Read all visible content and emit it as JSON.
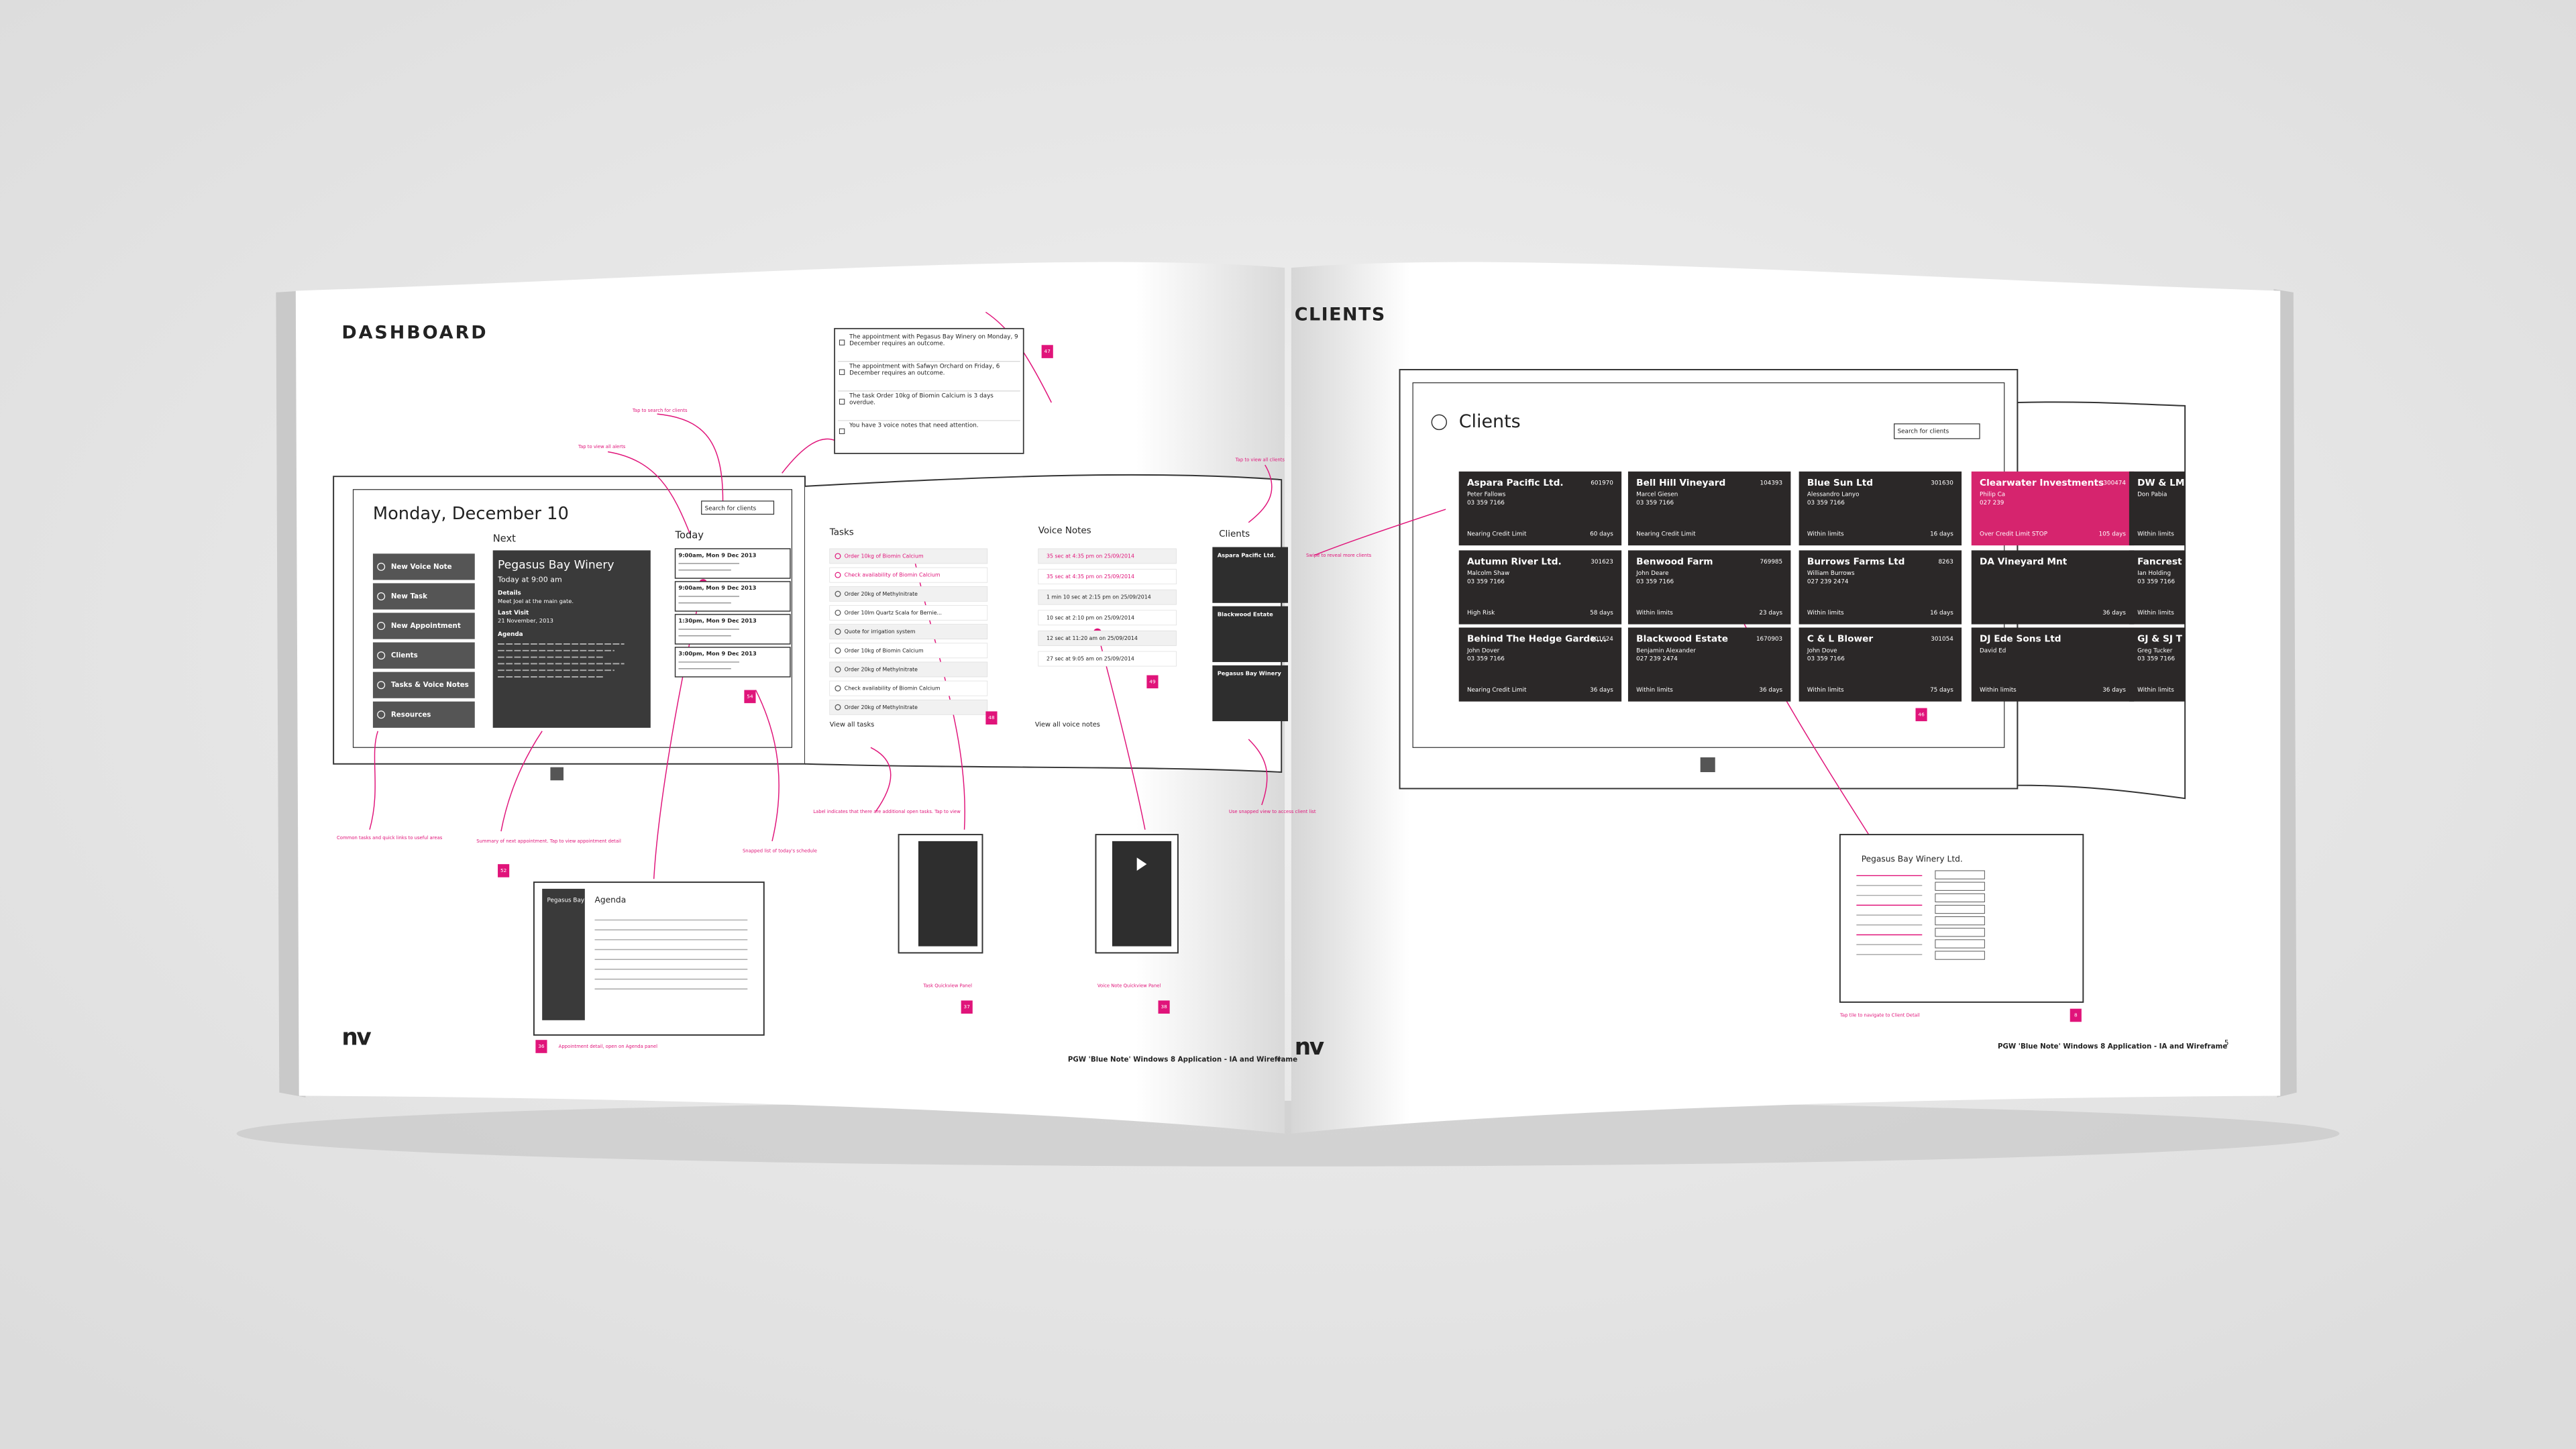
{
  "dashboard_page": {
    "title": "DASHBOARD",
    "logo": "nv",
    "footer": "PGW 'Blue Note' Windows 8 Application - IA and Wireframe",
    "page_number": "4",
    "screen": {
      "date": "Monday, December 10",
      "search": "Search for clients",
      "next_label": "Next",
      "today_label": "Today",
      "menu": [
        "New Voice Note",
        "New Task",
        "New Appointment",
        "Clients",
        "Tasks & Voice Notes",
        "Resources"
      ],
      "next_card": {
        "name": "Pegasus Bay Winery",
        "time": "Today at 9:00 am",
        "details_label": "Details",
        "details": "Meet Joel at the main gate.",
        "last_visit_label": "Last Visit",
        "last_visit": "21 November, 2013",
        "agenda_label": "Agenda"
      },
      "today_items": [
        "9:00am, Mon 9 Dec 2013",
        "9:00am, Mon 9 Dec 2013",
        "1:30pm, Mon 9 Dec 2013",
        "3:00pm, Mon 9 Dec 2013"
      ]
    },
    "notifications": [
      "The appointment with Pegasus Bay Winery on Monday, 9 December requires an outcome.",
      "The appointment with Safwyn Orchard on Friday, 6 December requires an outcome.",
      "The task Order 10kg of Biomin Calcium is 3 days overdue.",
      "You have 3 voice notes that need attention."
    ],
    "tasks": {
      "title": "Tasks",
      "items": [
        "Order 10kg of Biomin Calcium",
        "Check availability of Biomin Calcium",
        "Order 20kg of Methylnitrate",
        "Order 10lm Quartz Scala for Bernie...",
        "Quote for irrigation system",
        "Order 10kg of Biomin Calcium",
        "Order 20kg of Methylnitrate",
        "Check availability of Biomin Calcium",
        "Order 20kg of Methylnitrate"
      ],
      "link": "View all tasks"
    },
    "voice_notes": {
      "title": "Voice Notes",
      "items": [
        "35 sec at 4:35 pm on 25/09/2014",
        "35 sec at 4:35 pm on 25/09/2014",
        "1 min 10 sec at 2:15 pm on 25/09/2014",
        "10 sec at 2:10 pm on 25/09/2014",
        "12 sec at 11:20 am on 25/09/2014",
        "27 sec at 9:05 am on 25/09/2014"
      ],
      "link": "View all voice notes"
    },
    "clients": {
      "title": "Clients",
      "items": [
        "Aspara Pacific Ltd.",
        "Blackwood Estate",
        "Pegasus Bay Winery"
      ]
    },
    "agenda_panel": {
      "client": "Pegasus Bay Winery",
      "title": "Agenda"
    },
    "annotations": [
      "Tap to search for clients",
      "Tap to view all alerts",
      "Common tasks and quick links to useful areas",
      "Summary of next appointment. Tap to view appointment detail",
      "Snapped list of today's schedule",
      "Label indicates that there are additional open tasks. Tap to view",
      "Tap to view all clients",
      "Use snapped view to access client list",
      "Task Quickview Panel",
      "Voice Note Quickview Panel",
      "Appointment detail, open on Agenda panel"
    ],
    "badges": [
      "47",
      "54",
      "48",
      "49",
      "52",
      "36",
      "37",
      "38"
    ]
  },
  "clients_page": {
    "title": "CLIENTS",
    "logo": "nv",
    "footer": "PGW 'Blue Note' Windows 8 Application - IA and Wireframe",
    "page_number": "5",
    "screen": {
      "heading": "Clients",
      "search": "Search for clients",
      "tiles": [
        [
          {
            "name": "Aspara Pacific Ltd.",
            "id": "601970",
            "contact": "Peter Fallows",
            "phone": "03 359 7166",
            "status": "Nearing Credit Limit",
            "days": "60 days"
          },
          {
            "name": "Bell Hill Vineyard",
            "id": "104393",
            "contact": "Marcel Giesen",
            "phone": "03 359 7166",
            "status": "Nearing Credit Limit"
          },
          {
            "name": "Blue Sun Ltd",
            "id": "301630",
            "contact": "Alessandro Lanyo",
            "phone": "03 359 7166",
            "status": "Within limits",
            "days": "16 days"
          },
          {
            "name": "Clearwater Investments",
            "id": "300474",
            "contact": "Philip Ca",
            "phone": "027 239",
            "status": "Over Credit Limit STOP",
            "days": "105 days",
            "color": "#d6246e"
          },
          {
            "name": "DW & LM Pe",
            "contact": "Don Pabia",
            "status": "Within limits"
          }
        ],
        [
          {
            "name": "Autumn River Ltd.",
            "id": "301623",
            "contact": "Malcolm Shaw",
            "phone": "03 359 7166",
            "status": "High Risk",
            "days": "58 days"
          },
          {
            "name": "Benwood Farm",
            "id": "769985",
            "contact": "John Deare",
            "phone": "03 359 7166",
            "status": "Within limits",
            "days": "23 days"
          },
          {
            "name": "Burrows Farms Ltd",
            "id": "8263",
            "contact": "William Burrows",
            "phone": "027 239 2474",
            "status": "Within limits",
            "days": "16 days"
          },
          {
            "name": "DA Vineyard Mnt",
            "days": "36 days"
          },
          {
            "name": "Fancrest Este",
            "contact": "Ian Holding",
            "phone": "03 359 7166",
            "status": "Within limits"
          }
        ],
        [
          {
            "name": "Behind The Hedge Garde...",
            "id": "301624",
            "contact": "John Dover",
            "phone": "03 359 7166",
            "status": "Nearing Credit Limit",
            "days": "36 days"
          },
          {
            "name": "Blackwood Estate",
            "id": "1670903",
            "contact": "Benjamin Alexander",
            "phone": "027 239 2474",
            "status": "Within limits",
            "days": "36 days"
          },
          {
            "name": "C & L Blower",
            "id": "301054",
            "contact": "John Dove",
            "phone": "03 359 7166",
            "status": "Within limits",
            "days": "75 days"
          },
          {
            "name": "DJ Ede Sons Ltd",
            "contact": "David Ed",
            "status": "Within limits",
            "days": "36 days"
          },
          {
            "name": "GJ & SJ T",
            "contact": "Greg Tucker",
            "phone": "03 359 7166",
            "status": "Within limits"
          }
        ]
      ]
    },
    "client_detail": {
      "title": "Pegasus Bay Winery Ltd."
    },
    "annotations": [
      "Swipe to reveal more clients",
      "Tap tile to navigate to Client Detail"
    ],
    "badges": [
      "46",
      "8"
    ]
  }
}
